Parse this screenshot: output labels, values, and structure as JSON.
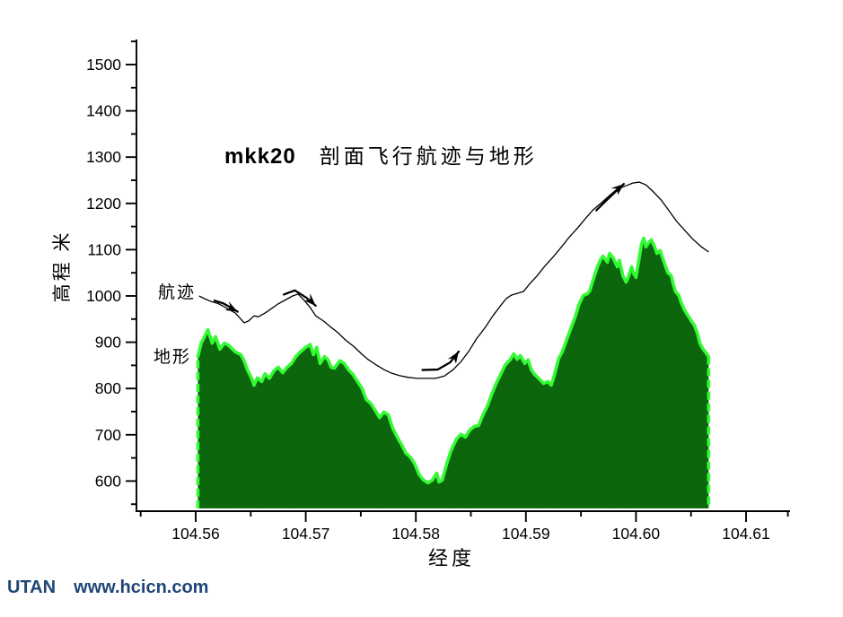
{
  "page": {
    "background": "#ffffff"
  },
  "footer": {
    "brand": "UTAN",
    "url": "www.hcicn.com",
    "color": "#1f4577"
  },
  "chart_data": {
    "type": "area",
    "title_prefix": "mkk20",
    "title": "剖面飞行航迹与地形",
    "xlabel": "经度",
    "ylabel": "高程 米",
    "xlim": [
      104.5546,
      104.6139
    ],
    "ylim": [
      541,
      1558
    ],
    "grid": false,
    "legend_position": "inline-annotations",
    "axis_color": "#000000",
    "x_ticks": [
      {
        "v": 104.56,
        "label": "104.56"
      },
      {
        "v": 104.57,
        "label": "104.57"
      },
      {
        "v": 104.58,
        "label": "104.58"
      },
      {
        "v": 104.59,
        "label": "104.59"
      },
      {
        "v": 104.6,
        "label": "104.60"
      },
      {
        "v": 104.61,
        "label": "104.61"
      }
    ],
    "x_minor_ticks": [
      104.555,
      104.565,
      104.575,
      104.585,
      104.595,
      104.605,
      104.6138
    ],
    "y_ticks": [
      {
        "v": 600,
        "label": "600"
      },
      {
        "v": 700,
        "label": "700"
      },
      {
        "v": 800,
        "label": "800"
      },
      {
        "v": 900,
        "label": "900"
      },
      {
        "v": 1000,
        "label": "1000"
      },
      {
        "v": 1100,
        "label": "1100"
      },
      {
        "v": 1200,
        "label": "1200"
      },
      {
        "v": 1300,
        "label": "1300"
      },
      {
        "v": 1400,
        "label": "1400"
      },
      {
        "v": 1500,
        "label": "1500"
      }
    ],
    "y_minor_ticks": [
      550,
      650,
      750,
      850,
      950,
      1050,
      1150,
      1250,
      1350,
      1450,
      1550
    ],
    "series": [
      {
        "name": "地形",
        "type": "area",
        "fill": "#0d6f0e",
        "fill2": "#0a5c0b",
        "edge": "#33fb33",
        "base": 541,
        "points": [
          [
            104.5602,
            869
          ],
          [
            104.5605,
            898
          ],
          [
            104.5608,
            912
          ],
          [
            104.5611,
            927
          ],
          [
            104.5615,
            898
          ],
          [
            104.5618,
            912
          ],
          [
            104.5622,
            885
          ],
          [
            104.5626,
            898
          ],
          [
            104.563,
            893
          ],
          [
            104.5636,
            879
          ],
          [
            104.5641,
            873
          ],
          [
            104.5644,
            860
          ],
          [
            104.5647,
            840
          ],
          [
            104.5651,
            821
          ],
          [
            104.5653,
            807
          ],
          [
            104.5656,
            823
          ],
          [
            104.566,
            815
          ],
          [
            104.5663,
            832
          ],
          [
            104.5667,
            822
          ],
          [
            104.5671,
            838
          ],
          [
            104.5675,
            846
          ],
          [
            104.5679,
            834
          ],
          [
            104.5683,
            846
          ],
          [
            104.5687,
            854
          ],
          [
            104.5691,
            869
          ],
          [
            104.5695,
            879
          ],
          [
            104.57,
            889
          ],
          [
            104.5704,
            895
          ],
          [
            104.5707,
            873
          ],
          [
            104.571,
            889
          ],
          [
            104.5713,
            854
          ],
          [
            104.5717,
            869
          ],
          [
            104.572,
            863
          ],
          [
            104.5723,
            846
          ],
          [
            104.5726,
            844
          ],
          [
            104.5731,
            860
          ],
          [
            104.5735,
            854
          ],
          [
            104.5739,
            840
          ],
          [
            104.5743,
            830
          ],
          [
            104.5747,
            815
          ],
          [
            104.5751,
            801
          ],
          [
            104.5755,
            776
          ],
          [
            104.5759,
            768
          ],
          [
            104.5763,
            753
          ],
          [
            104.5767,
            737
          ],
          [
            104.5771,
            749
          ],
          [
            104.5775,
            743
          ],
          [
            104.5779,
            714
          ],
          [
            104.5784,
            691
          ],
          [
            104.5787,
            679
          ],
          [
            104.5791,
            660
          ],
          [
            104.5795,
            652
          ],
          [
            104.5799,
            637
          ],
          [
            104.5803,
            614
          ],
          [
            104.5807,
            602
          ],
          [
            104.5811,
            596
          ],
          [
            104.5815,
            602
          ],
          [
            104.5819,
            617
          ],
          [
            104.5821,
            598
          ],
          [
            104.5824,
            602
          ],
          [
            104.5828,
            637
          ],
          [
            104.5832,
            666
          ],
          [
            104.5837,
            691
          ],
          [
            104.5841,
            701
          ],
          [
            104.5845,
            695
          ],
          [
            104.5849,
            710
          ],
          [
            104.5853,
            718
          ],
          [
            104.5857,
            720
          ],
          [
            104.5861,
            743
          ],
          [
            104.5865,
            762
          ],
          [
            104.5869,
            788
          ],
          [
            104.5873,
            811
          ],
          [
            104.5877,
            830
          ],
          [
            104.5881,
            850
          ],
          [
            104.5886,
            863
          ],
          [
            104.5889,
            875
          ],
          [
            104.5892,
            863
          ],
          [
            104.5895,
            871
          ],
          [
            104.5899,
            854
          ],
          [
            104.5902,
            862
          ],
          [
            104.5905,
            840
          ],
          [
            104.5908,
            830
          ],
          [
            104.5912,
            821
          ],
          [
            104.5916,
            811
          ],
          [
            104.592,
            815
          ],
          [
            104.5923,
            807
          ],
          [
            104.5926,
            830
          ],
          [
            104.593,
            866
          ],
          [
            104.5933,
            879
          ],
          [
            104.5936,
            898
          ],
          [
            104.5939,
            918
          ],
          [
            104.5942,
            937
          ],
          [
            104.5945,
            956
          ],
          [
            104.5948,
            980
          ],
          [
            104.5952,
            1001
          ],
          [
            104.5956,
            1005
          ],
          [
            104.5958,
            1011
          ],
          [
            104.5961,
            1034
          ],
          [
            104.5965,
            1063
          ],
          [
            104.5968,
            1079
          ],
          [
            104.597,
            1086
          ],
          [
            104.5974,
            1073
          ],
          [
            104.5976,
            1092
          ],
          [
            104.5979,
            1083
          ],
          [
            104.5983,
            1063
          ],
          [
            104.5985,
            1077
          ],
          [
            104.5988,
            1044
          ],
          [
            104.5991,
            1030
          ],
          [
            104.5993,
            1040
          ],
          [
            104.5996,
            1063
          ],
          [
            104.5998,
            1048
          ],
          [
            104.6,
            1040
          ],
          [
            104.6003,
            1083
          ],
          [
            104.6005,
            1112
          ],
          [
            104.6007,
            1125
          ],
          [
            104.6009,
            1106
          ],
          [
            104.6012,
            1117
          ],
          [
            104.6014,
            1121
          ],
          [
            104.6017,
            1106
          ],
          [
            104.6019,
            1092
          ],
          [
            104.6022,
            1098
          ],
          [
            104.6024,
            1083
          ],
          [
            104.6027,
            1063
          ],
          [
            104.6029,
            1050
          ],
          [
            104.6032,
            1044
          ],
          [
            104.6034,
            1024
          ],
          [
            104.6036,
            1009
          ],
          [
            104.6039,
            1001
          ],
          [
            104.6041,
            986
          ],
          [
            104.6044,
            970
          ],
          [
            104.6046,
            962
          ],
          [
            104.6049,
            951
          ],
          [
            104.6051,
            943
          ],
          [
            104.6053,
            937
          ],
          [
            104.6056,
            918
          ],
          [
            104.6058,
            898
          ],
          [
            104.6061,
            885
          ],
          [
            104.6063,
            879
          ],
          [
            104.6066,
            869
          ]
        ]
      },
      {
        "name": "航迹",
        "type": "line",
        "color": "#000000",
        "points": [
          [
            104.5603,
            1000
          ],
          [
            104.5608,
            994
          ],
          [
            104.5614,
            988
          ],
          [
            104.562,
            984
          ],
          [
            104.5624,
            979
          ],
          [
            104.563,
            971
          ],
          [
            104.5636,
            963
          ],
          [
            104.5641,
            950
          ],
          [
            104.5644,
            942
          ],
          [
            104.5648,
            946
          ],
          [
            104.5653,
            957
          ],
          [
            104.5657,
            955
          ],
          [
            104.5663,
            963
          ],
          [
            104.5669,
            973
          ],
          [
            104.5675,
            983
          ],
          [
            104.5682,
            992
          ],
          [
            104.5688,
            1000
          ],
          [
            104.5693,
            1004
          ],
          [
            104.5698,
            992
          ],
          [
            104.5704,
            975
          ],
          [
            104.5709,
            957
          ],
          [
            104.5716,
            946
          ],
          [
            104.5722,
            934
          ],
          [
            104.5729,
            921
          ],
          [
            104.5736,
            905
          ],
          [
            104.5744,
            890
          ],
          [
            104.5751,
            874
          ],
          [
            104.5757,
            862
          ],
          [
            104.5764,
            851
          ],
          [
            104.5771,
            841
          ],
          [
            104.5778,
            833
          ],
          [
            104.5785,
            828
          ],
          [
            104.5793,
            824
          ],
          [
            104.5801,
            822
          ],
          [
            104.581,
            822
          ],
          [
            104.5818,
            822
          ],
          [
            104.5826,
            827
          ],
          [
            104.5834,
            841
          ],
          [
            104.5841,
            858
          ],
          [
            104.5848,
            880
          ],
          [
            104.5855,
            907
          ],
          [
            104.5863,
            932
          ],
          [
            104.587,
            957
          ],
          [
            104.5877,
            979
          ],
          [
            104.5882,
            994
          ],
          [
            104.5887,
            1002
          ],
          [
            104.5893,
            1006
          ],
          [
            104.5898,
            1010
          ],
          [
            104.5903,
            1025
          ],
          [
            104.591,
            1043
          ],
          [
            104.5917,
            1064
          ],
          [
            104.5925,
            1085
          ],
          [
            104.5932,
            1105
          ],
          [
            104.5939,
            1126
          ],
          [
            104.5947,
            1147
          ],
          [
            104.5954,
            1167
          ],
          [
            104.5961,
            1186
          ],
          [
            104.5969,
            1202
          ],
          [
            104.5976,
            1217
          ],
          [
            104.5983,
            1231
          ],
          [
            104.5991,
            1238
          ],
          [
            104.5997,
            1244
          ],
          [
            104.6003,
            1246
          ],
          [
            104.6009,
            1240
          ],
          [
            104.6015,
            1227
          ],
          [
            104.6023,
            1207
          ],
          [
            104.603,
            1184
          ],
          [
            104.6037,
            1161
          ],
          [
            104.6045,
            1140
          ],
          [
            104.6052,
            1122
          ],
          [
            104.6059,
            1107
          ],
          [
            104.6066,
            1095
          ]
        ]
      }
    ],
    "annotations": {
      "series_labels": [
        {
          "text": "航迹",
          "series": "trajectory"
        },
        {
          "text": "地形",
          "series": "terrain"
        }
      ],
      "arrows": [
        {
          "tail": [
            [
              104.5617,
              990
            ],
            [
              104.5625,
              984
            ],
            [
              104.5631,
              976
            ]
          ],
          "tip": [
            104.5638,
            966
          ],
          "angle": 28
        },
        {
          "tail": [
            [
              104.568,
              1003
            ],
            [
              104.569,
              1012
            ],
            [
              104.57,
              997
            ]
          ],
          "tip": [
            104.5709,
            979
          ],
          "angle": 44
        },
        {
          "tail": [
            [
              104.5806,
              840
            ],
            [
              104.582,
              841
            ],
            [
              104.5831,
              856
            ]
          ],
          "tip": [
            104.5839,
            880
          ],
          "angle": -56
        },
        {
          "tail": [
            [
              104.5964,
              1185
            ],
            [
              104.5972,
              1204
            ],
            [
              104.598,
              1222
            ]
          ],
          "tip": [
            104.5989,
            1242
          ],
          "angle": -40
        }
      ]
    }
  }
}
